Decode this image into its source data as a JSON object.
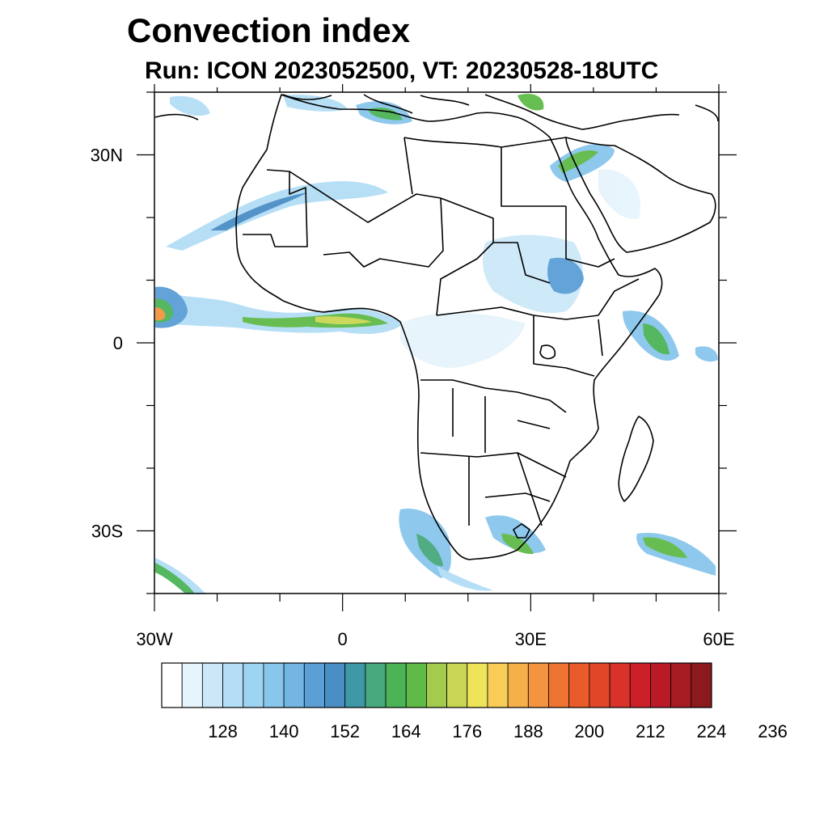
{
  "title": "Convection index",
  "subtitle": "Run: ICON 2023052500,  VT: 20230528-18UTC",
  "map": {
    "lon_range": [
      -30,
      60
    ],
    "lat_range": [
      -40,
      40
    ],
    "lat_labels": [
      {
        "value": 30,
        "text": "30N"
      },
      {
        "value": 0,
        "text": "0"
      },
      {
        "value": -30,
        "text": "30S"
      }
    ],
    "lon_labels": [
      {
        "value": -30,
        "text": "30W"
      },
      {
        "value": 0,
        "text": "0"
      },
      {
        "value": 30,
        "text": "30E"
      },
      {
        "value": 60,
        "text": "60E"
      }
    ]
  },
  "colorbar": {
    "labels": [
      "128",
      "140",
      "152",
      "164",
      "176",
      "188",
      "200",
      "212",
      "224",
      "236"
    ],
    "colors": [
      "#ffffff",
      "#e6f4fc",
      "#cce8f8",
      "#b3def6",
      "#9dd4f2",
      "#88c6ec",
      "#73b5e3",
      "#5b9fd6",
      "#4a8ec6",
      "#3f98a8",
      "#48a87e",
      "#4cb457",
      "#5fba48",
      "#a3cc4e",
      "#c9d654",
      "#eee45a",
      "#f8cc56",
      "#f5b04a",
      "#f39540",
      "#ef7432",
      "#ea5b2b",
      "#e24628",
      "#d9322a",
      "#cc1f28",
      "#ba1a26",
      "#a61a22",
      "#8b1a1c"
    ]
  }
}
